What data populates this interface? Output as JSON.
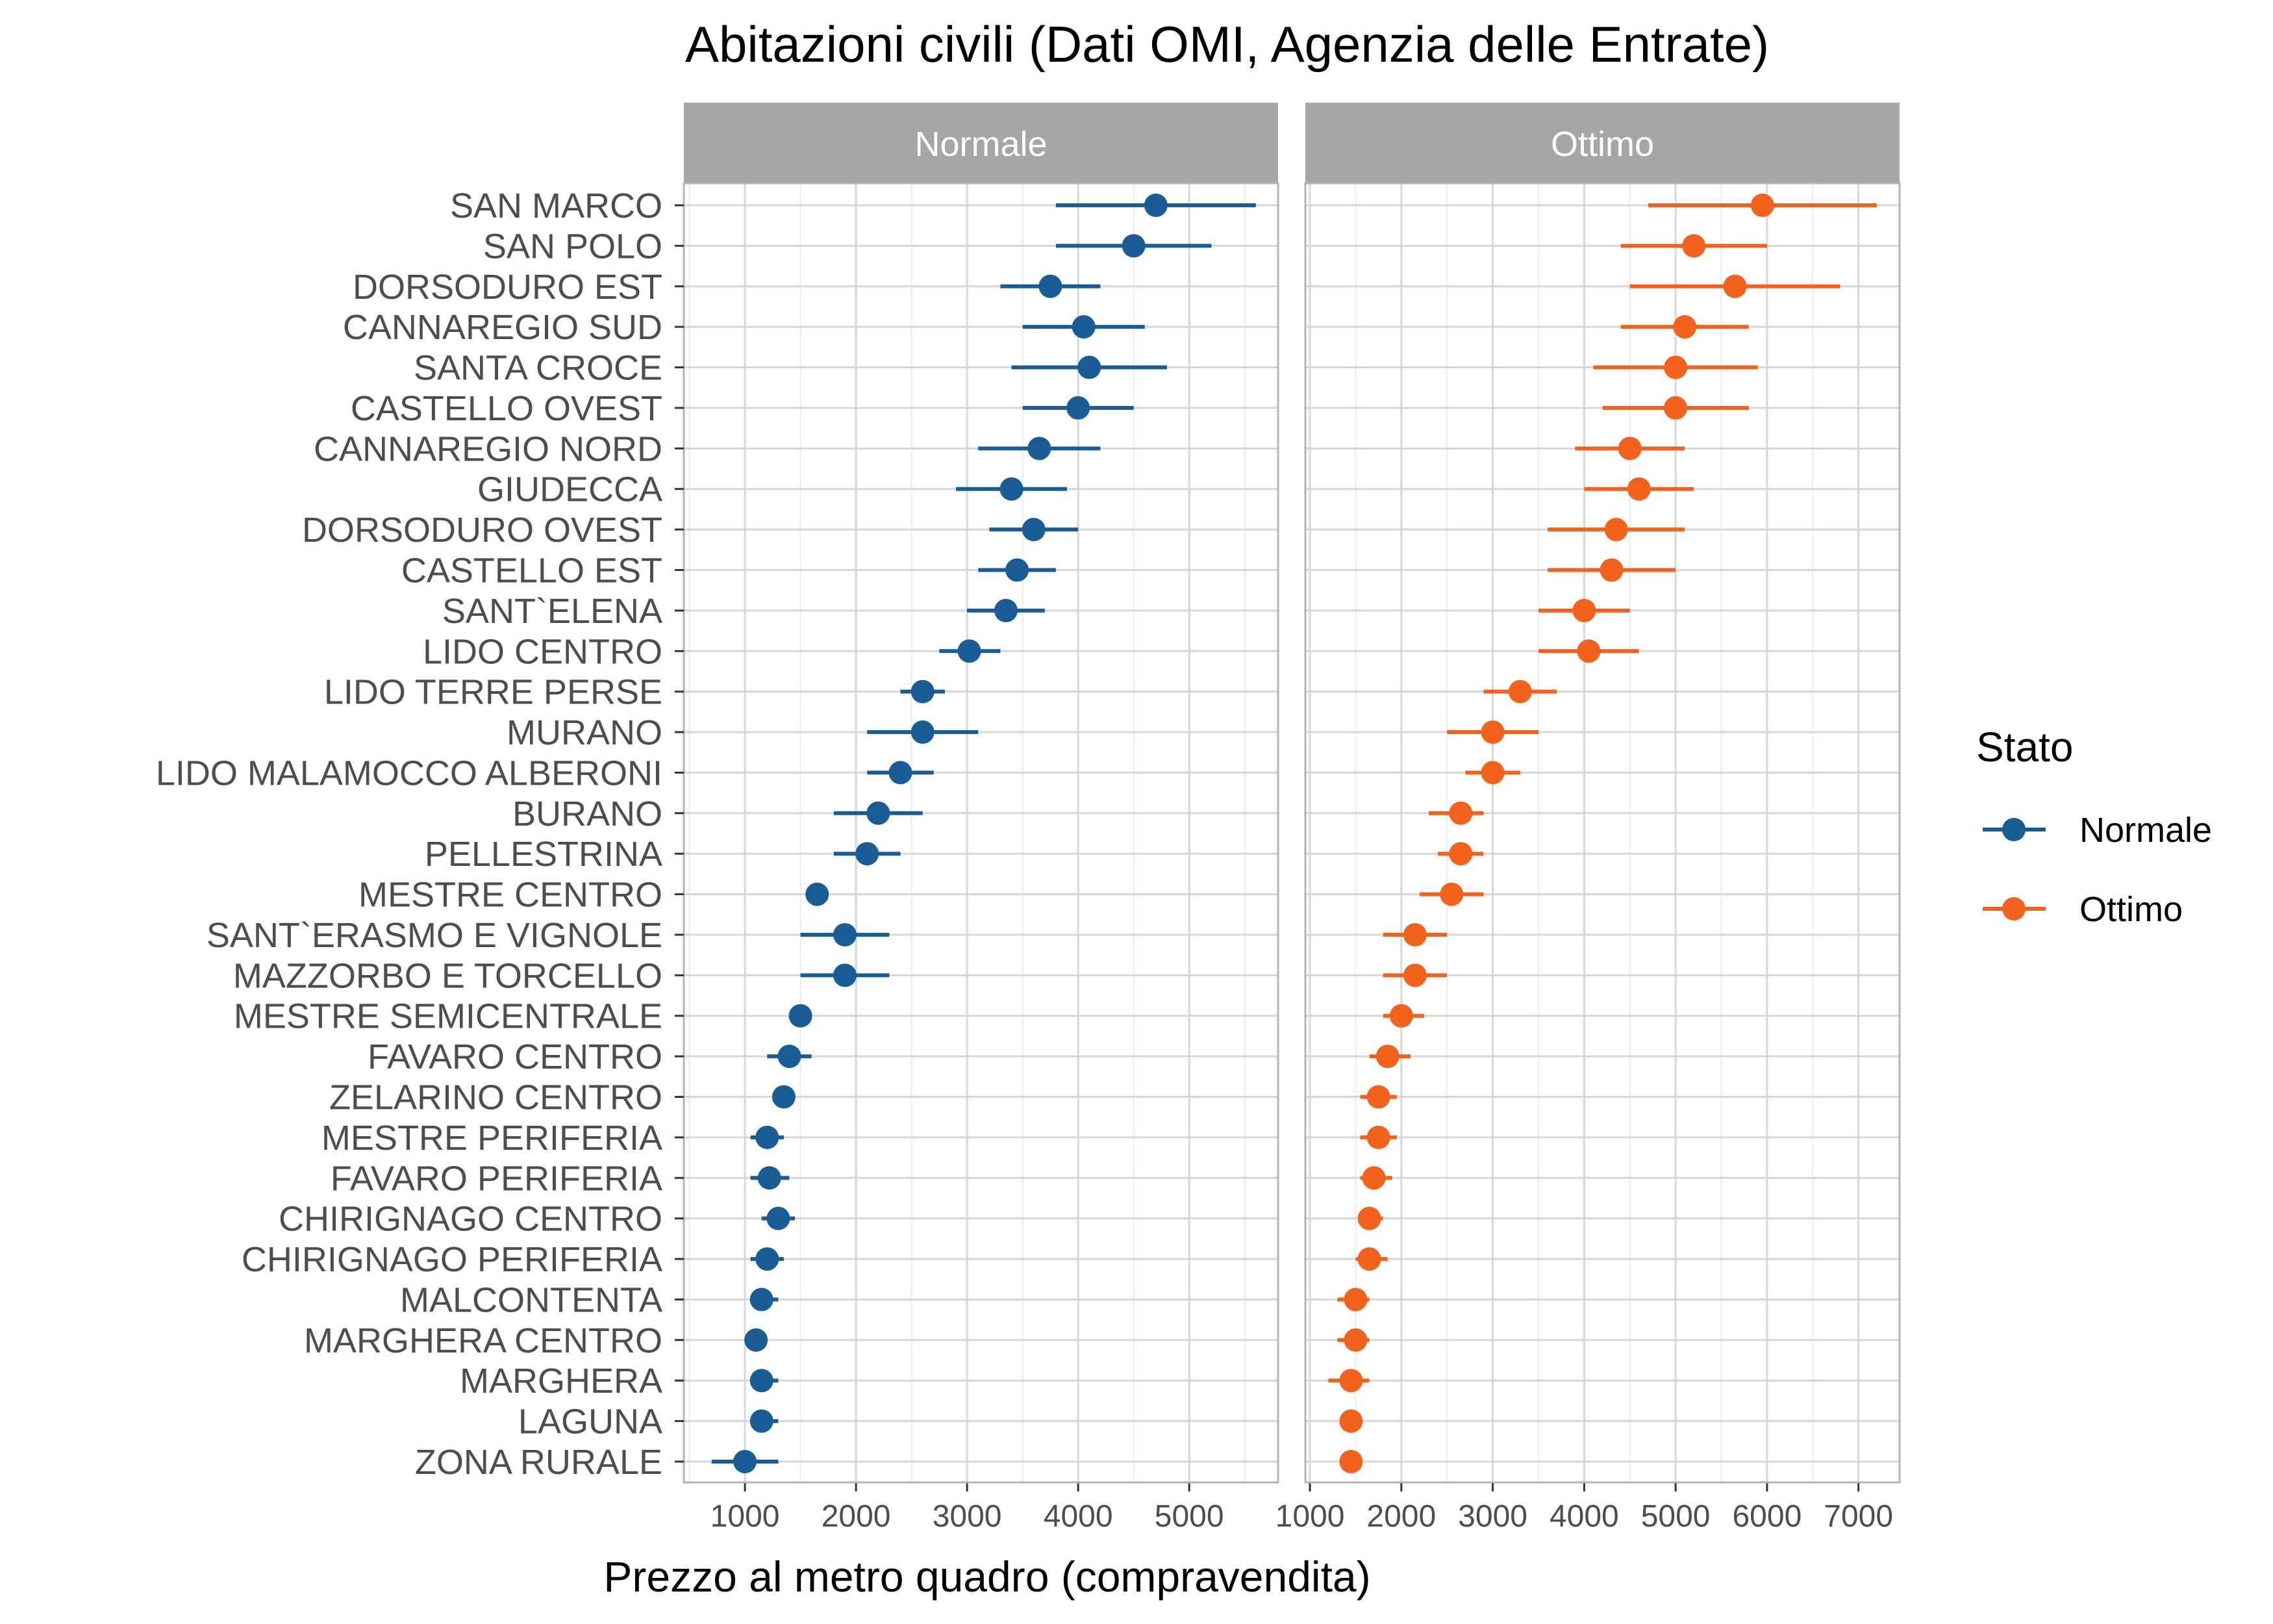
{
  "chart_data": {
    "type": "dot-errorbar",
    "title": "Abitazioni civili  (Dati OMI, Agenzia delle Entrate)",
    "xlabel": "Prezzo al metro quadro (compravendita)",
    "ylabel": "",
    "grid": true,
    "legend": {
      "title": "Stato",
      "placement": "right",
      "entries": [
        {
          "label": "Normale",
          "color": "#1a5c96"
        },
        {
          "label": "Ottimo",
          "color": "#f2621c"
        }
      ]
    },
    "categories": [
      "SAN MARCO",
      "SAN POLO",
      "DORSODURO EST",
      "CANNAREGIO SUD",
      "SANTA CROCE",
      "CASTELLO OVEST",
      "CANNAREGIO NORD",
      "GIUDECCA",
      "DORSODURO OVEST",
      "CASTELLO EST",
      "SANT`ELENA",
      "LIDO CENTRO",
      "LIDO TERRE PERSE",
      "MURANO",
      "LIDO MALAMOCCO ALBERONI",
      "BURANO",
      "PELLESTRINA",
      "MESTRE CENTRO",
      "SANT`ERASMO E VIGNOLE",
      "MAZZORBO E TORCELLO",
      "MESTRE SEMICENTRALE",
      "FAVARO CENTRO",
      "ZELARINO CENTRO",
      "MESTRE PERIFERIA",
      "FAVARO PERIFERIA",
      "CHIRIGNAGO CENTRO",
      "CHIRIGNAGO PERIFERIA",
      "MALCONTENTA",
      "MARGHERA CENTRO",
      "MARGHERA",
      "LAGUNA",
      "ZONA RURALE"
    ],
    "panels": [
      {
        "name": "Normale",
        "color": "#1a5c96",
        "xlim": [
          450,
          5800
        ],
        "xticks": [
          "1000",
          "2000",
          "3000",
          "4000",
          "5000"
        ],
        "mid": [
          4700,
          4500,
          3750,
          4050,
          4100,
          4000,
          3650,
          3400,
          3600,
          3450,
          3350,
          3020,
          2600,
          2600,
          2400,
          2200,
          2100,
          1650,
          1900,
          1900,
          1500,
          1400,
          1350,
          1200,
          1220,
          1300,
          1200,
          1150,
          1100,
          1150,
          1150,
          1000
        ],
        "low": [
          3800,
          3800,
          3300,
          3500,
          3400,
          3500,
          3100,
          2900,
          3200,
          3100,
          3000,
          2750,
          2400,
          2100,
          2100,
          1800,
          1800,
          1550,
          1500,
          1500,
          1500,
          1200,
          1250,
          1050,
          1050,
          1150,
          1050,
          1050,
          1050,
          1050,
          1050,
          700
        ],
        "high": [
          5600,
          5200,
          4200,
          4600,
          4800,
          4500,
          4200,
          3900,
          4000,
          3800,
          3700,
          3300,
          2800,
          3100,
          2700,
          2600,
          2400,
          1750,
          2300,
          2300,
          1550,
          1600,
          1450,
          1350,
          1400,
          1450,
          1350,
          1300,
          1150,
          1300,
          1300,
          1300
        ]
      },
      {
        "name": "Ottimo",
        "color": "#f2621c",
        "xlim": [
          950,
          7450
        ],
        "xticks": [
          "1000",
          "2000",
          "3000",
          "4000",
          "5000",
          "6000",
          "7000"
        ],
        "mid": [
          5950,
          5200,
          5650,
          5100,
          5000,
          5000,
          4500,
          4600,
          4350,
          4300,
          4000,
          4050,
          3300,
          3000,
          3000,
          2650,
          2650,
          2550,
          2150,
          2150,
          2000,
          1850,
          1750,
          1750,
          1700,
          1650,
          1650,
          1500,
          1500,
          1450,
          1450,
          1450
        ],
        "low": [
          4700,
          4400,
          4500,
          4400,
          4100,
          4200,
          3900,
          4000,
          3600,
          3600,
          3500,
          3500,
          2900,
          2500,
          2700,
          2300,
          2400,
          2200,
          1800,
          1800,
          1800,
          1650,
          1550,
          1550,
          1550,
          1550,
          1500,
          1300,
          1300,
          1200,
          1350,
          1350
        ],
        "high": [
          7200,
          6000,
          6800,
          5800,
          5900,
          5800,
          5100,
          5200,
          5100,
          5000,
          4500,
          4600,
          3700,
          3500,
          3300,
          2900,
          2900,
          2900,
          2500,
          2500,
          2250,
          2100,
          1950,
          1950,
          1900,
          1800,
          1850,
          1650,
          1650,
          1650,
          1550,
          1550
        ]
      }
    ]
  }
}
